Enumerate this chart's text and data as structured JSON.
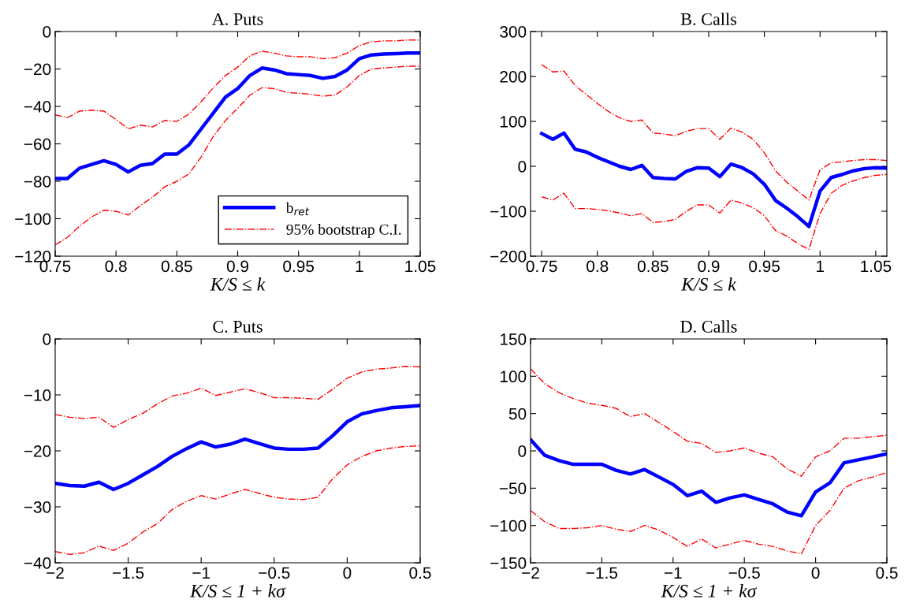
{
  "chart_data": [
    {
      "type": "line",
      "title": "A. Puts",
      "xlabel": "K/S ≤ k",
      "x": [
        0.75,
        0.76,
        0.77,
        0.78,
        0.79,
        0.8,
        0.81,
        0.82,
        0.83,
        0.84,
        0.85,
        0.86,
        0.87,
        0.88,
        0.89,
        0.9,
        0.91,
        0.92,
        0.93,
        0.94,
        0.95,
        0.96,
        0.97,
        0.98,
        0.99,
        1.0,
        1.01,
        1.02,
        1.03,
        1.04,
        1.05
      ],
      "xlim": [
        0.75,
        1.05
      ],
      "xticks": [
        0.75,
        0.8,
        0.85,
        0.9,
        0.95,
        1,
        1.05
      ],
      "ylim": [
        -120,
        0
      ],
      "yticks": [
        -120,
        -100,
        -80,
        -60,
        -40,
        -20,
        0
      ],
      "legend": "bottom right",
      "series": [
        {
          "name": "b$_{ret}$",
          "color": "#0000ff",
          "line_style": "solid",
          "values": [
            -78.5,
            -78.5,
            -73,
            -71,
            -69,
            -71,
            -75,
            -71.5,
            -70.5,
            -65.5,
            -65.5,
            -60.5,
            -52,
            -43.5,
            -35,
            -30.5,
            -23.5,
            -19.5,
            -20.5,
            -22.5,
            -23,
            -23.5,
            -25,
            -24,
            -20.5,
            -14.5,
            -12.5,
            -12,
            -11.8,
            -11.5,
            -11.5
          ]
        },
        {
          "name": "95% bootstrap C.I.",
          "color": "#ff0000",
          "line_style": "dashdot",
          "values": [
            -44.5,
            -46,
            -42.5,
            -42,
            -42.5,
            -47,
            -52,
            -50,
            -51,
            -47.5,
            -48,
            -44,
            -37.5,
            -30,
            -23.5,
            -19,
            -13,
            -10.5,
            -11.5,
            -13,
            -13.5,
            -13.5,
            -14.5,
            -14,
            -11.5,
            -7.5,
            -5.5,
            -5,
            -5,
            -4.5,
            -4.5
          ]
        },
        {
          "color": "#ff0000",
          "line_style": "dashdot",
          "values": [
            -114,
            -110,
            -104,
            -99,
            -95.5,
            -96,
            -98,
            -93,
            -88.5,
            -83,
            -80,
            -76,
            -67,
            -56,
            -47.5,
            -41,
            -34,
            -30,
            -30.5,
            -32.5,
            -33,
            -33.5,
            -34.5,
            -34,
            -29.5,
            -23.5,
            -20,
            -19.5,
            -19,
            -18.5,
            -18.5
          ]
        }
      ]
    },
    {
      "type": "line",
      "title": "B. Calls",
      "xlabel": "K/S ≤ k",
      "x": [
        0.75,
        0.76,
        0.77,
        0.78,
        0.79,
        0.8,
        0.81,
        0.82,
        0.83,
        0.84,
        0.85,
        0.86,
        0.87,
        0.88,
        0.89,
        0.9,
        0.91,
        0.92,
        0.93,
        0.94,
        0.95,
        0.96,
        0.97,
        0.98,
        0.99,
        1.0,
        1.01,
        1.02,
        1.03,
        1.04,
        1.05,
        1.06
      ],
      "xlim": [
        0.74,
        1.06
      ],
      "xticks": [
        0.75,
        0.8,
        0.85,
        0.9,
        0.95,
        1,
        1.05
      ],
      "ylim": [
        -200,
        300
      ],
      "yticks": [
        -200,
        -100,
        0,
        100,
        200,
        300
      ],
      "series": [
        {
          "color": "#0000ff",
          "line_style": "solid",
          "values": [
            73,
            60,
            74,
            38,
            32,
            20,
            10,
            0,
            -7,
            2,
            -25,
            -27,
            -28,
            -11,
            -3,
            -4,
            -23,
            5,
            -3,
            -17,
            -40,
            -76,
            -93,
            -112,
            -134,
            -55,
            -25,
            -18,
            -10,
            -5,
            -3,
            -4
          ]
        },
        {
          "color": "#ff0000",
          "line_style": "dashdot",
          "values": [
            226,
            210,
            212,
            180,
            160,
            140,
            122,
            108,
            100,
            103,
            74,
            72,
            68,
            78,
            84,
            84,
            60,
            85,
            76,
            60,
            30,
            -10,
            -35,
            -55,
            -75,
            -8,
            8,
            10,
            13,
            15,
            15,
            13
          ]
        },
        {
          "color": "#ff0000",
          "line_style": "dashdot",
          "values": [
            -68,
            -75,
            -60,
            -94,
            -94,
            -96,
            -99,
            -104,
            -110,
            -105,
            -125,
            -123,
            -118,
            -100,
            -86,
            -86,
            -104,
            -75,
            -82,
            -92,
            -110,
            -143,
            -155,
            -172,
            -185,
            -105,
            -60,
            -42,
            -32,
            -25,
            -20,
            -18
          ]
        }
      ]
    },
    {
      "type": "line",
      "title": "C. Puts",
      "xlabel": "K/S ≤ 1 + kσ",
      "x": [
        -2.0,
        -1.9,
        -1.8,
        -1.7,
        -1.6,
        -1.5,
        -1.4,
        -1.3,
        -1.2,
        -1.1,
        -1.0,
        -0.9,
        -0.8,
        -0.7,
        -0.6,
        -0.5,
        -0.4,
        -0.3,
        -0.2,
        -0.1,
        0,
        0.1,
        0.2,
        0.3,
        0.4,
        0.5
      ],
      "xlim": [
        -2,
        0.5
      ],
      "xticks": [
        -2,
        -1.5,
        -1,
        -0.5,
        0,
        0.5
      ],
      "ylim": [
        -40,
        0
      ],
      "yticks": [
        -40,
        -30,
        -20,
        -10,
        0
      ],
      "series": [
        {
          "color": "#0000ff",
          "line_style": "solid",
          "values": [
            -25.8,
            -26.2,
            -26.3,
            -25.6,
            -26.9,
            -25.8,
            -24.3,
            -22.8,
            -21.0,
            -19.6,
            -18.4,
            -19.3,
            -18.8,
            -17.9,
            -18.7,
            -19.5,
            -19.7,
            -19.7,
            -19.5,
            -17.3,
            -14.8,
            -13.4,
            -12.8,
            -12.3,
            -12.1,
            -11.9
          ]
        },
        {
          "color": "#ff0000",
          "line_style": "dashdot",
          "values": [
            -13.5,
            -14,
            -14.2,
            -14,
            -15.8,
            -14.4,
            -13.3,
            -11.6,
            -10.2,
            -9.7,
            -8.8,
            -10.1,
            -9.5,
            -8.9,
            -9.6,
            -10.5,
            -10.5,
            -10.6,
            -10.8,
            -9,
            -7,
            -5.9,
            -5.4,
            -5.2,
            -4.9,
            -5
          ]
        },
        {
          "color": "#ff0000",
          "line_style": "dashdot",
          "values": [
            -38,
            -38.5,
            -38.2,
            -37,
            -37.8,
            -36.5,
            -34.5,
            -33,
            -30.5,
            -29,
            -28,
            -28.6,
            -27.7,
            -26.9,
            -27.6,
            -28.3,
            -28.6,
            -28.7,
            -28.3,
            -25,
            -22.5,
            -21,
            -20,
            -19.5,
            -19.2,
            -19.1
          ]
        }
      ]
    },
    {
      "type": "line",
      "title": "D. Calls",
      "xlabel": "K/S ≤ 1 + kσ",
      "x": [
        -2.0,
        -1.9,
        -1.8,
        -1.7,
        -1.6,
        -1.5,
        -1.4,
        -1.3,
        -1.2,
        -1.1,
        -1.0,
        -0.9,
        -0.8,
        -0.7,
        -0.6,
        -0.5,
        -0.4,
        -0.3,
        -0.2,
        -0.1,
        0,
        0.1,
        0.2,
        0.3,
        0.4,
        0.5
      ],
      "xlim": [
        -2,
        0.5
      ],
      "xticks": [
        -2,
        -1.5,
        -1,
        -0.5,
        0,
        0.5
      ],
      "ylim": [
        -150,
        150
      ],
      "yticks": [
        -150,
        -100,
        -50,
        0,
        50,
        100,
        150
      ],
      "series": [
        {
          "color": "#0000ff",
          "line_style": "solid",
          "values": [
            15,
            -6,
            -13,
            -18,
            -18,
            -18,
            -26,
            -31,
            -25,
            -35,
            -45,
            -60,
            -54,
            -69,
            -63,
            -59,
            -65,
            -71,
            -82,
            -87,
            -55,
            -43,
            -16,
            -12,
            -8,
            -4
          ]
        },
        {
          "color": "#ff0000",
          "line_style": "dashdot",
          "values": [
            110,
            90,
            78,
            70,
            64,
            61,
            57,
            46,
            50,
            38,
            26,
            13,
            10,
            -2,
            0,
            4,
            -3,
            -8,
            -24,
            -34,
            -8,
            0,
            17,
            17,
            19,
            21
          ]
        },
        {
          "color": "#ff0000",
          "line_style": "dashdot",
          "values": [
            -80,
            -95,
            -104,
            -104,
            -103,
            -100,
            -105,
            -108,
            -100,
            -106,
            -116,
            -128,
            -118,
            -130,
            -125,
            -120,
            -125,
            -128,
            -134,
            -138,
            -100,
            -80,
            -50,
            -40,
            -35,
            -29
          ]
        }
      ]
    }
  ]
}
